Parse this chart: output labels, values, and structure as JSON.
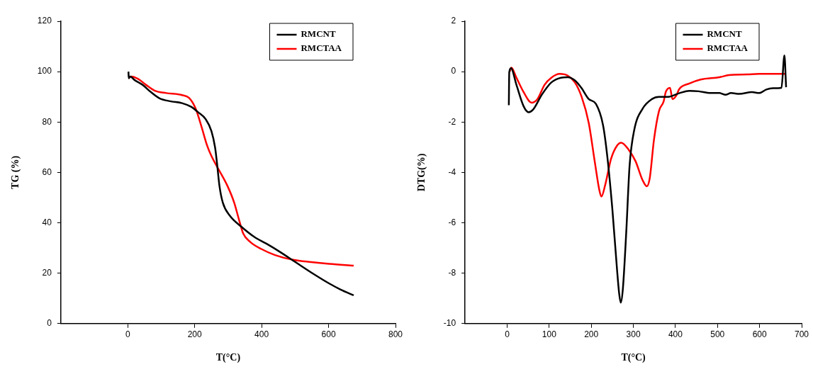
{
  "chart_data": [
    {
      "type": "line",
      "xlabel": "T(°C)",
      "ylabel": "TG (%)",
      "xlim": [
        -200,
        800
      ],
      "xticks": [
        0,
        200,
        400,
        600,
        800
      ],
      "ylim": [
        0,
        120
      ],
      "yticks": [
        0,
        20,
        40,
        60,
        80,
        100,
        120
      ],
      "grid": false,
      "legend": "top right",
      "marker": "none",
      "line_style": "solid",
      "series": [
        {
          "name": "RMCNT",
          "color": "#000000",
          "x": [
            2,
            3,
            7,
            20,
            44,
            68,
            95,
            129,
            162,
            190,
            210,
            233,
            250,
            261,
            267,
            274,
            284,
            305,
            338,
            379,
            413,
            453,
            501,
            555,
            602,
            636,
            675
          ],
          "values": [
            100,
            97.4,
            98.1,
            96.7,
            94.8,
            92,
            89.4,
            88.2,
            87.5,
            86,
            83.9,
            81.1,
            76.4,
            69.8,
            63.2,
            54.6,
            48,
            42.8,
            38.6,
            34.3,
            31.8,
            28.6,
            24.4,
            19.7,
            15.9,
            13.5,
            11.2
          ]
        },
        {
          "name": "RMCTAA",
          "color": "#ff0000",
          "x": [
            3,
            10,
            30,
            54,
            81,
            115,
            162,
            183,
            203,
            220,
            237,
            250,
            271,
            298,
            318,
            332,
            345,
            366,
            399,
            440,
            494,
            548,
            602,
            675
          ],
          "values": [
            97.4,
            98.1,
            97.2,
            94.8,
            92.4,
            91.5,
            90.7,
            89.6,
            85.3,
            78.3,
            70.7,
            66.5,
            61.3,
            54.6,
            48,
            41.4,
            35.7,
            32.4,
            29.6,
            27.2,
            25.3,
            24.4,
            23.7,
            23
          ]
        }
      ]
    },
    {
      "type": "line",
      "xlabel": "T(°C)",
      "ylabel": "DTG(%)",
      "xlim": [
        -100,
        700
      ],
      "xticks": [
        0,
        100,
        200,
        300,
        400,
        500,
        600,
        700
      ],
      "ylim": [
        -10,
        2
      ],
      "yticks": [
        -10,
        -8,
        -6,
        -4,
        -2,
        0,
        2
      ],
      "grid": false,
      "legend": "top right",
      "marker": "none",
      "line_style": "solid",
      "series": [
        {
          "name": "RMCNT",
          "color": "#000000",
          "x": [
            4,
            5,
            9,
            22,
            39,
            51,
            61,
            83,
            105,
            128,
            144,
            161,
            177,
            194,
            211,
            228,
            238,
            250,
            261,
            266,
            270,
            275,
            283,
            291,
            302,
            322,
            344,
            361,
            383,
            410,
            433,
            455,
            483,
            505,
            519,
            532,
            552,
            582,
            599,
            616,
            632,
            652,
            659,
            663
          ],
          "values": [
            -1.33,
            -0.03,
            0.14,
            -0.52,
            -1.37,
            -1.61,
            -1.52,
            -0.9,
            -0.43,
            -0.24,
            -0.22,
            -0.35,
            -0.66,
            -1.09,
            -1.28,
            -2.13,
            -3.36,
            -5.45,
            -7.82,
            -8.77,
            -9.17,
            -8.63,
            -6.4,
            -3.74,
            -2.32,
            -1.47,
            -1.09,
            -1,
            -1,
            -0.85,
            -0.76,
            -0.78,
            -0.85,
            -0.85,
            -0.92,
            -0.85,
            -0.88,
            -0.81,
            -0.85,
            -0.71,
            -0.66,
            -0.64,
            0.64,
            -0.62
          ]
        },
        {
          "name": "RMCTAA",
          "color": "#ff0000",
          "x": [
            6,
            10,
            22,
            39,
            58,
            72,
            89,
            105,
            125,
            144,
            161,
            177,
            194,
            208,
            219,
            224,
            233,
            247,
            261,
            271,
            288,
            305,
            322,
            332,
            339,
            349,
            361,
            372,
            377,
            387,
            393,
            402,
            409,
            433,
            460,
            505,
            527,
            572,
            599,
            660
          ],
          "values": [
            0,
            0.16,
            -0.24,
            -0.81,
            -1.23,
            -1.09,
            -0.52,
            -0.24,
            -0.09,
            -0.16,
            -0.43,
            -1,
            -2.04,
            -3.55,
            -4.69,
            -4.96,
            -4.5,
            -3.46,
            -2.94,
            -2.82,
            -3.08,
            -3.55,
            -4.31,
            -4.55,
            -4.22,
            -2.7,
            -1.56,
            -1.18,
            -0.81,
            -0.64,
            -1.09,
            -0.95,
            -0.69,
            -0.47,
            -0.31,
            -0.22,
            -0.14,
            -0.11,
            -0.09,
            -0.09
          ]
        }
      ]
    }
  ]
}
